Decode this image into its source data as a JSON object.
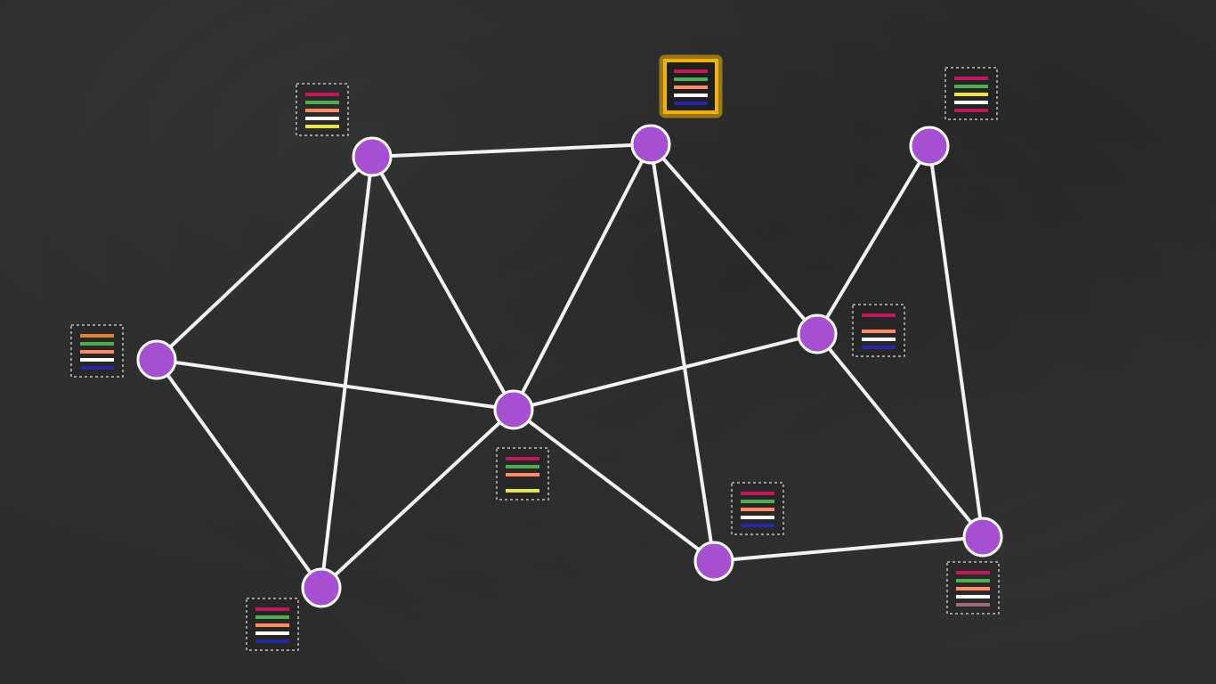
{
  "diagram": {
    "type": "network",
    "colors": {
      "board": "#2c2c2c",
      "edge": "#f2f2f2",
      "node_fill": "#a64fd1",
      "node_stroke": "#ffffff",
      "ledger_border": "#bdbdbd",
      "ledger_highlight": "#f0b400"
    },
    "nodes": [
      {
        "id": "n1",
        "ledger": [
          "#c2185b",
          "#4caf50",
          "#ff8a65",
          "#ffffff",
          "#e6e64a"
        ],
        "highlighted": false
      },
      {
        "id": "n2",
        "ledger": [
          "#c2185b",
          "#4caf50",
          "#ff8a65",
          "#ffffff",
          "#2525a8"
        ],
        "highlighted": true
      },
      {
        "id": "n3",
        "ledger": [
          "#c2185b",
          "#4caf50",
          "#e6e64a",
          "#ffffff",
          "#c2185b"
        ],
        "highlighted": false
      },
      {
        "id": "n4",
        "ledger": [
          "#e67e3a",
          "#4caf50",
          "#ff8a65",
          "#ffffff",
          "#2525a8"
        ],
        "highlighted": false
      },
      {
        "id": "n5",
        "ledger": [
          "#c2185b",
          "#4caf50",
          "#ff8a65",
          "",
          "#e6e64a"
        ],
        "highlighted": false
      },
      {
        "id": "n6",
        "ledger": [
          "#c2185b",
          "",
          "#ff8a65",
          "#ffffff",
          "#2525a8"
        ],
        "highlighted": false
      },
      {
        "id": "n7",
        "ledger": [
          "#c2185b",
          "#4caf50",
          "#ff8a65",
          "#ffffff",
          "#2525a8"
        ],
        "highlighted": false
      },
      {
        "id": "n8",
        "ledger": [
          "#c2185b",
          "#4caf50",
          "#ff8a65",
          "#ffffff",
          "#2525a8"
        ],
        "highlighted": false
      },
      {
        "id": "n9",
        "ledger": [
          "#c2185b",
          "#4caf50",
          "#ff8a65",
          "#ffffff",
          "#a06a7a"
        ],
        "highlighted": false
      }
    ],
    "edges": [
      [
        "n1",
        "n2"
      ],
      [
        "n1",
        "n4"
      ],
      [
        "n1",
        "n5"
      ],
      [
        "n1",
        "n8"
      ],
      [
        "n2",
        "n5"
      ],
      [
        "n2",
        "n9"
      ],
      [
        "n2",
        "n6"
      ],
      [
        "n3",
        "n6"
      ],
      [
        "n3",
        "n10"
      ],
      [
        "n4",
        "n5"
      ],
      [
        "n4",
        "n8"
      ],
      [
        "n5",
        "n6"
      ],
      [
        "n5",
        "n8"
      ],
      [
        "n5",
        "n9"
      ],
      [
        "n6",
        "n10"
      ],
      [
        "n9",
        "n10"
      ]
    ]
  }
}
